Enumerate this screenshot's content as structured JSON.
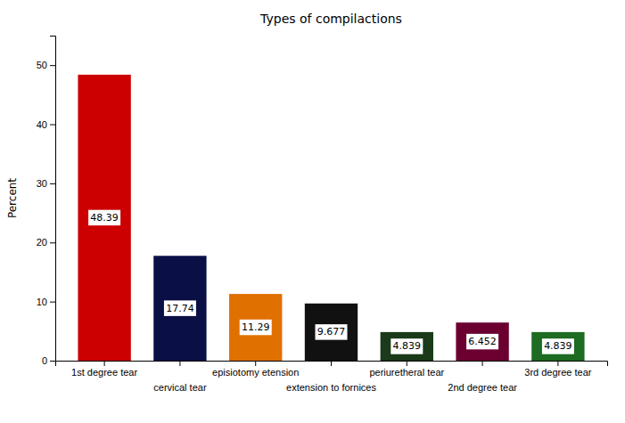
{
  "chart_data": {
    "type": "bar",
    "title": "Types of compilactions",
    "ylabel": "Percent",
    "categories": [
      "1st degree tear",
      "cervical tear",
      "episiotomy etension",
      "extension to fornices",
      "periuretheral tear",
      "2nd degree tear",
      "3rd degree tear"
    ],
    "values": [
      48.39,
      17.74,
      11.29,
      9.677,
      4.839,
      6.452,
      4.839
    ],
    "colors": [
      "#cc0000",
      "#0a1045",
      "#e07000",
      "#111111",
      "#1a3a1a",
      "#6b0030",
      "#1e6b22"
    ],
    "ylim": [
      0,
      55
    ],
    "yticks": [
      0,
      10,
      20,
      30,
      40,
      50
    ],
    "data_labels": true,
    "grid": false
  }
}
